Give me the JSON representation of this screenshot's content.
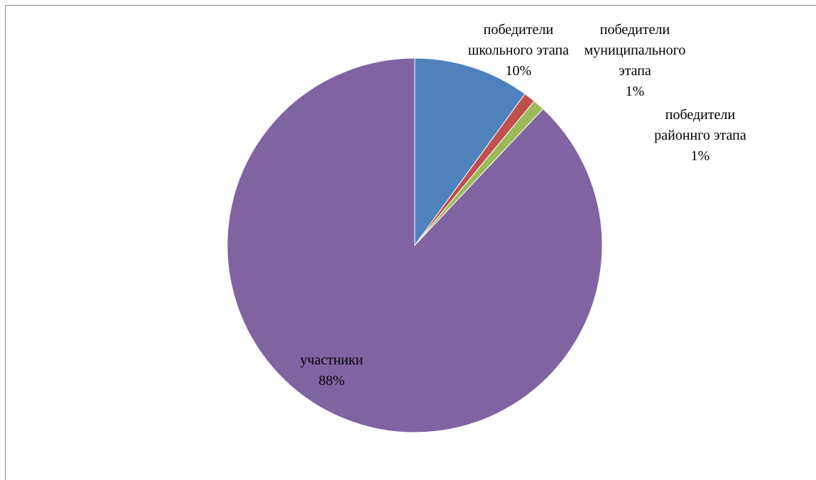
{
  "chart_data": {
    "type": "pie",
    "title": "",
    "slices": [
      {
        "label_lines": [
          "победители",
          "школьного этапа"
        ],
        "percent_label": "10%",
        "value": 10,
        "color": "#4f81bd"
      },
      {
        "label_lines": [
          "победители",
          "муниципального",
          "этапа"
        ],
        "percent_label": "1%",
        "value": 1,
        "color": "#c0504d"
      },
      {
        "label_lines": [
          "победители",
          "районнго этапа"
        ],
        "percent_label": "1%",
        "value": 1,
        "color": "#9bbb59"
      },
      {
        "label_lines": [
          "участники"
        ],
        "percent_label": "88%",
        "value": 88,
        "color": "#8064a2"
      }
    ],
    "legend": "none"
  }
}
